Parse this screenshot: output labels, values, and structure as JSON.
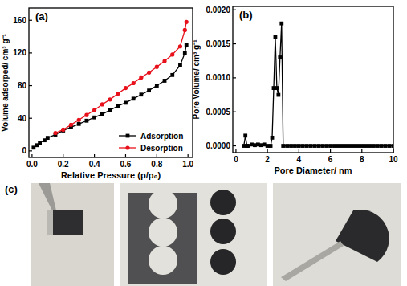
{
  "chart_data": [
    {
      "type": "line",
      "title": "(a)",
      "x_label": "Relative Pressure (p/p₀)",
      "y_label": "Volume adsorped/ cm³ g⁻¹",
      "x": [
        0.01,
        0.03,
        0.05,
        0.08,
        0.1,
        0.15,
        0.2,
        0.25,
        0.3,
        0.35,
        0.4,
        0.45,
        0.5,
        0.55,
        0.6,
        0.65,
        0.7,
        0.75,
        0.8,
        0.85,
        0.9,
        0.95,
        0.98,
        0.99
      ],
      "series": [
        {
          "name": "Adsorption",
          "color": "#000000",
          "marker": "square",
          "values": [
            4,
            7,
            10,
            13,
            16,
            20,
            25,
            29,
            33,
            37,
            41,
            45,
            50,
            55,
            59,
            64,
            69,
            74,
            80,
            86,
            93,
            105,
            120,
            130
          ]
        },
        {
          "name": "Desorption",
          "color": "#e8101a",
          "marker": "circle",
          "values": [
            null,
            null,
            null,
            null,
            null,
            22,
            26,
            32,
            38,
            44,
            50,
            57,
            63,
            70,
            77,
            83,
            90,
            96,
            103,
            110,
            118,
            128,
            148,
            158
          ]
        }
      ],
      "xlim": [
        -0.02,
        1.03
      ],
      "ylim": [
        -8,
        175
      ],
      "xticks": [
        {
          "value": 0,
          "label": "0.0"
        },
        0.2,
        0.4,
        0.6,
        0.8,
        {
          "value": 1,
          "label": "1.0"
        }
      ],
      "yticks": [
        0,
        40,
        80,
        120,
        160
      ],
      "legend": "lower right"
    },
    {
      "type": "line",
      "title": "(b)",
      "x_label": "Pore Diameter/ nm",
      "y_label": "Pore Volume/ cm³ g⁻¹",
      "x": [
        0.5,
        0.6,
        0.7,
        0.8,
        1,
        1.2,
        1.4,
        1.6,
        1.8,
        2,
        2.2,
        2.3,
        2.4,
        2.5,
        2.6,
        2.7,
        2.8,
        2.9,
        3,
        3.25,
        3.5,
        3.75,
        4,
        4.25,
        4.5,
        4.75,
        5,
        5.25,
        5.5,
        5.75,
        6,
        6.25,
        6.5,
        6.75,
        7,
        7.25,
        7.5,
        7.75,
        8,
        8.25,
        8.5,
        8.75,
        9,
        9.25,
        9.5,
        9.75,
        10
      ],
      "series": [
        {
          "color": "#000000",
          "marker": "square",
          "values": [
            0,
            0.00015,
            0,
            0,
            2e-05,
            1e-05,
            2e-05,
            1e-05,
            2e-05,
            0,
            0,
            0.00012,
            0.00085,
            0.0016,
            0.00085,
            0.00075,
            0.0013,
            0.0018,
            0,
            0,
            0,
            0,
            0,
            0,
            0,
            0,
            0,
            0,
            0,
            0,
            0,
            0,
            0,
            0,
            0,
            0,
            0,
            0,
            0,
            0,
            0,
            0,
            0,
            0,
            0,
            0,
            0
          ]
        }
      ],
      "xlim": [
        -0.2,
        10
      ],
      "ylim": [
        -0.0001,
        0.00205
      ],
      "xticks": [
        0,
        2,
        4,
        6,
        8,
        10
      ],
      "yticks": [
        {
          "value": 0,
          "label": "0.0000"
        },
        0.0005,
        {
          "value": 0.001,
          "label": "0.0010"
        },
        0.0015,
        {
          "value": 0.002,
          "label": "0.0020"
        }
      ]
    }
  ],
  "photo_panel": {
    "label": "(c)"
  }
}
